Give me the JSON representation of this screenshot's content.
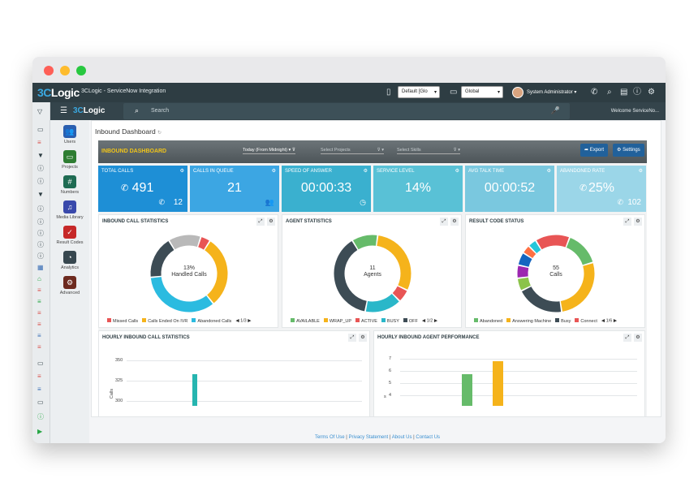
{
  "window": {
    "traffic_lights": [
      "close",
      "minimize",
      "maximize"
    ]
  },
  "topbar": {
    "logo_c3": "3C",
    "logo_logic": "Logic",
    "app_title": "3CLogic - ServiceNow Integration",
    "default_select": "Default [Glo",
    "global_select": "Global",
    "user_name": "System Administrator",
    "user_caret": "▾"
  },
  "secondary_bar": {
    "logo_c3": "3C",
    "logo_logic": "Logic",
    "search_placeholder": "Search",
    "welcome": "Welcome ServiceNo..."
  },
  "modules": [
    {
      "label": "Users",
      "icon": "users-icon",
      "glyph": "👥",
      "color": "#2a5fb0"
    },
    {
      "label": "Projects",
      "icon": "folder-icon",
      "glyph": "▭",
      "color": "#2e7d32"
    },
    {
      "label": "Numbers",
      "icon": "hash-icon",
      "glyph": "#",
      "color": "#1e6b52"
    },
    {
      "label": "Media Library",
      "icon": "music-icon",
      "glyph": "♫",
      "color": "#3949ab"
    },
    {
      "label": "Result Codes",
      "icon": "checklist-icon",
      "glyph": "✓",
      "color": "#c62828"
    },
    {
      "label": "Analytics",
      "icon": "pie-icon",
      "glyph": "◔",
      "color": "#37474f"
    },
    {
      "label": "Advanced",
      "icon": "gear-icon",
      "glyph": "⚙",
      "color": "#6d2a1f"
    }
  ],
  "page": {
    "title": "Inbound Dashboard",
    "refresh": "↻"
  },
  "dashboard": {
    "title": "INBOUND DASHBOARD",
    "filter_time": "Today (From Midnight)",
    "filter_projects": "Select Projects",
    "filter_skills": "Select Skills",
    "export_label": "Export",
    "settings_label": "Settings",
    "tiles": [
      {
        "label": "TOTAL CALLS",
        "value": "491",
        "sub": "12",
        "color": "#1e8fd6"
      },
      {
        "label": "CALLS IN QUEUE",
        "value": "21",
        "sub": "",
        "color": "#3ca6e3"
      },
      {
        "label": "SPEED OF ANSWER",
        "value": "00:00:33",
        "sub": "",
        "color": "#3ab0cf"
      },
      {
        "label": "SERVICE LEVEL",
        "value": "14%",
        "sub": "",
        "color": "#59c1d6"
      },
      {
        "label": "AVG TALK TIME",
        "value": "00:00:52",
        "sub": "",
        "color": "#7ac8df"
      },
      {
        "label": "ABANDONED RATE",
        "value": "25%",
        "sub": "102",
        "color": "#9bd6e8"
      }
    ],
    "panels": {
      "inbound": {
        "title": "INBOUND CALL STATISTICS",
        "center_line1": "13%",
        "center_line2": "Handled Calls",
        "legend": [
          "Missed Calls",
          "Calls Ended On IVR",
          "Abandoned Calls"
        ],
        "legend_colors": [
          "#e85555",
          "#f5b31b",
          "#2bbbe0"
        ],
        "pager": "1/3"
      },
      "agents": {
        "title": "AGENT STATISTICS",
        "center_line1": "11",
        "center_line2": "Agents",
        "legend": [
          "AVAILABLE",
          "WRAP_UP",
          "ACTIVE",
          "BUSY",
          "OFF"
        ],
        "legend_colors": [
          "#66bb6a",
          "#f5b31b",
          "#e85555",
          "#2ab7c9",
          "#3d4c55"
        ],
        "pager": "1/2"
      },
      "result": {
        "title": "RESULT CODE STATUS",
        "center_line1": "55",
        "center_line2": "Calls",
        "legend": [
          "Abandoned",
          "Answering Machine",
          "Busy",
          "Connect"
        ],
        "legend_colors": [
          "#66bb6a",
          "#f5b31b",
          "#3d4c55",
          "#e85555"
        ],
        "pager": "1/6"
      },
      "hourly_calls": {
        "title": "HOURLY INBOUND CALL STATISTICS",
        "y_label": "Calls"
      },
      "hourly_agents": {
        "title": "HOURLY INBOUND AGENT PERFORMANCE",
        "y_label": "s"
      }
    }
  },
  "chart_data": [
    {
      "type": "pie",
      "title": "INBOUND CALL STATISTICS",
      "categories": [
        "Handled Calls",
        "Missed Calls",
        "Calls Ended On IVR",
        "Abandoned Calls"
      ],
      "values": [
        13,
        3,
        22,
        25
      ],
      "colors": [
        "#3d4c55",
        "#e85555",
        "#f5b31b",
        "#2bbbe0"
      ],
      "extra": {
        "name": "Other",
        "value": 10,
        "color": "#b9b9b9"
      },
      "order": [
        "Other",
        "Missed Calls",
        "Calls Ended On IVR",
        "Abandoned Calls",
        "Handled Calls"
      ]
    },
    {
      "type": "pie",
      "title": "AGENT STATISTICS",
      "categories": [
        "AVAILABLE",
        "WRAP_UP",
        "ACTIVE",
        "BUSY",
        "OFF"
      ],
      "values": [
        1.2,
        3.3,
        0.6,
        1.7,
        4.2
      ],
      "colors": [
        "#66bb6a",
        "#f5b31b",
        "#e85555",
        "#2ab7c9",
        "#3d4c55"
      ]
    },
    {
      "type": "pie",
      "title": "RESULT CODE STATUS",
      "categories": [
        "Connect",
        "Abandoned",
        "Answering Machine",
        "Busy",
        "Other1",
        "Other2",
        "Other3",
        "Other4",
        "Other5"
      ],
      "values": [
        8,
        8,
        15,
        11,
        3,
        3,
        3,
        2,
        2
      ],
      "colors": [
        "#e85555",
        "#66bb6a",
        "#f5b31b",
        "#3d4c55",
        "#8bc34a",
        "#9c27b0",
        "#1565c0",
        "#ff7043",
        "#26c6da"
      ]
    },
    {
      "type": "bar",
      "title": "HOURLY INBOUND CALL STATISTICS",
      "ylabel": "Calls",
      "y_ticks": [
        "350",
        "325",
        "300"
      ],
      "y_tick_values": [
        350,
        325,
        300
      ],
      "ylim": [
        300,
        360
      ],
      "values": [
        333
      ],
      "colors": [
        "#26b5b0"
      ]
    },
    {
      "type": "bar",
      "title": "HOURLY INBOUND AGENT PERFORMANCE",
      "ylabel": "s",
      "y_ticks": [
        "7",
        "6",
        "5",
        "4"
      ],
      "y_tick_values": [
        7,
        6,
        5,
        4
      ],
      "ylim": [
        3.5,
        7.5
      ],
      "values": [
        5.7,
        6.8
      ],
      "colors": [
        "#66bb6a",
        "#f5b31b"
      ]
    }
  ],
  "footer": {
    "terms": "Terms Of Use",
    "privacy": "Privacy Statement",
    "about": "About Us",
    "contact": "Contact Us",
    "sep": "|"
  }
}
